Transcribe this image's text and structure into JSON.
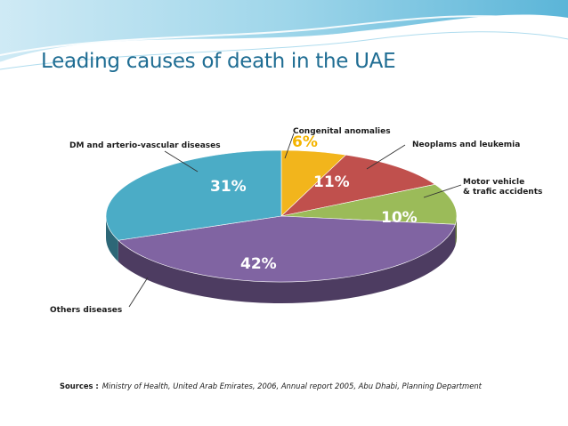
{
  "slide": {
    "title": "Leading causes of death in the UAE"
  },
  "chart_data": {
    "type": "pie",
    "title": "",
    "categories": [
      "Congenital anomalies",
      "Neoplams and leukemia",
      "Motor vehicle & trafic accidents",
      "Others diseases",
      "DM and arterio-vascular diseases"
    ],
    "values": [
      6,
      11,
      10,
      42,
      31
    ],
    "value_labels": [
      "6%",
      "11%",
      "10%",
      "42%",
      "31%"
    ],
    "label_lines": {
      "motor": [
        "Motor vehicle",
        "& trafic accidents"
      ]
    },
    "colors": {
      "congenital": "#f2b51c",
      "neoplasms": "#c0504d",
      "motor": "#9bbb59",
      "others": "#8064a2",
      "dm": "#4bacc6"
    },
    "legend": "none",
    "source": {
      "label": "Sources :",
      "text": "Ministry of Health, United Arab Emirates, 2006, Annual report 2005, Abu Dhabi, Planning Department"
    }
  }
}
